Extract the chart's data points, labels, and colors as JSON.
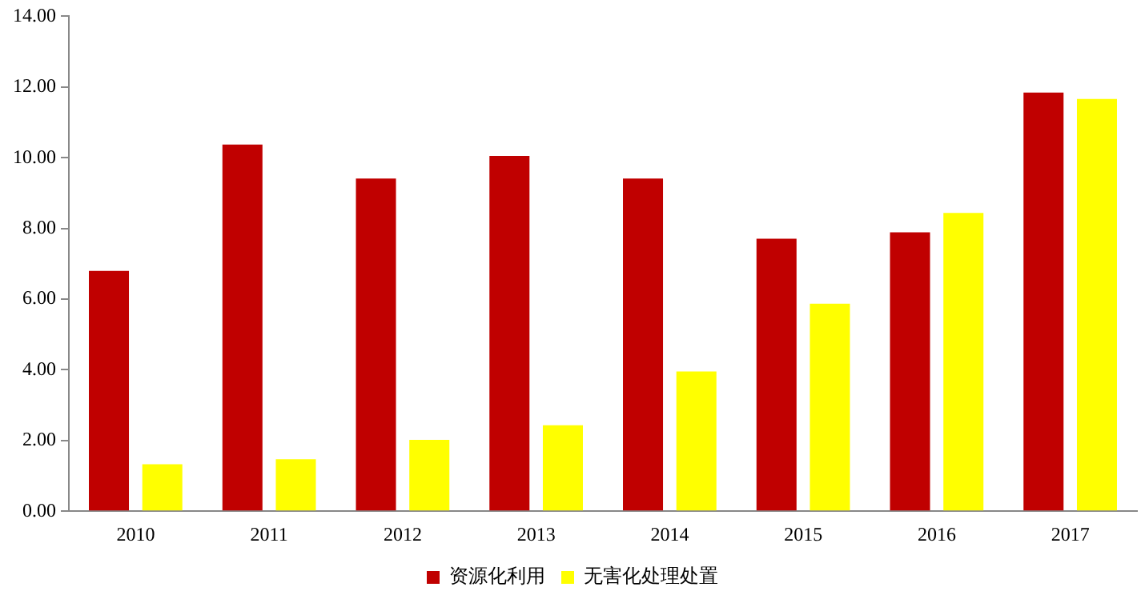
{
  "chart_data": {
    "type": "bar",
    "categories": [
      "2010",
      "2011",
      "2012",
      "2013",
      "2014",
      "2015",
      "2016",
      "2017"
    ],
    "series": [
      {
        "name": "资源化利用",
        "color": "#c00000",
        "values": [
          6.8,
          10.37,
          9.41,
          10.05,
          9.41,
          7.71,
          7.89,
          11.84
        ]
      },
      {
        "name": "无害化处理处置",
        "color": "#ffff00",
        "values": [
          1.33,
          1.47,
          2.02,
          2.43,
          3.95,
          5.87,
          8.44,
          11.66
        ]
      }
    ],
    "ylim": [
      0,
      14
    ],
    "yticks": [
      {
        "value": 0,
        "label": "0.00"
      },
      {
        "value": 2,
        "label": "2.00"
      },
      {
        "value": 4,
        "label": "4.00"
      },
      {
        "value": 6,
        "label": "6.00"
      },
      {
        "value": 8,
        "label": "8.00"
      },
      {
        "value": 10,
        "label": "10.00"
      },
      {
        "value": 12,
        "label": "12.00"
      },
      {
        "value": 14,
        "label": "14.00"
      }
    ],
    "grid": false,
    "legend": "bottom"
  }
}
